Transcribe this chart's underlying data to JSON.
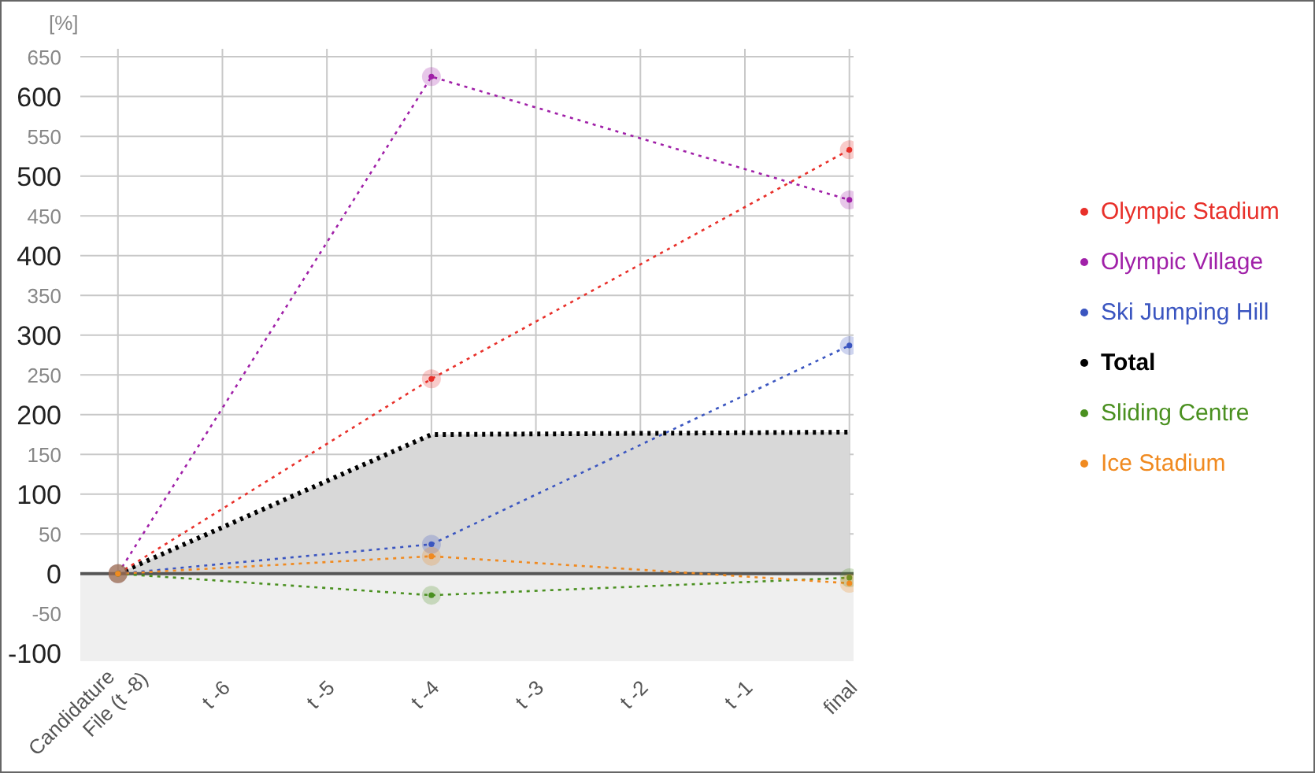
{
  "chart_data": {
    "type": "line",
    "ylabel": "[%]",
    "categories": [
      "Candidature File (t -8)",
      "t -6",
      "t -5",
      "t -4",
      "t -3",
      "t -2",
      "t -1",
      "final"
    ],
    "series": [
      {
        "name": "Olympic Stadium",
        "color": "#e8302a",
        "values": [
          0,
          null,
          null,
          245,
          null,
          null,
          null,
          533
        ]
      },
      {
        "name": "Olympic Village",
        "color": "#a020a8",
        "values": [
          0,
          null,
          null,
          625,
          null,
          null,
          null,
          470
        ]
      },
      {
        "name": "Ski Jumping Hill",
        "color": "#3a55c0",
        "values": [
          0,
          null,
          null,
          37,
          null,
          null,
          null,
          287
        ]
      },
      {
        "name": "Total",
        "type": "area",
        "color": "#000000",
        "marker": "none",
        "values": [
          0,
          null,
          null,
          175,
          null,
          null,
          null,
          178
        ]
      },
      {
        "name": "Sliding Centre",
        "color": "#4a9020",
        "values": [
          0,
          null,
          null,
          -27,
          null,
          null,
          null,
          -5
        ]
      },
      {
        "name": "Ice Stadium",
        "color": "#f08a20",
        "values": [
          0,
          null,
          null,
          22,
          null,
          null,
          null,
          -12
        ]
      }
    ],
    "ylim": [
      -110,
      660
    ],
    "yticks": [
      -100,
      -50,
      0,
      50,
      100,
      150,
      200,
      250,
      300,
      350,
      400,
      450,
      500,
      550,
      600,
      650
    ],
    "bands": [
      {
        "axis": "y",
        "from": -110,
        "to": 0,
        "color": "#efefef"
      }
    ],
    "grid": true,
    "legend": "right",
    "marker": "circle",
    "line_style": "dotted"
  }
}
